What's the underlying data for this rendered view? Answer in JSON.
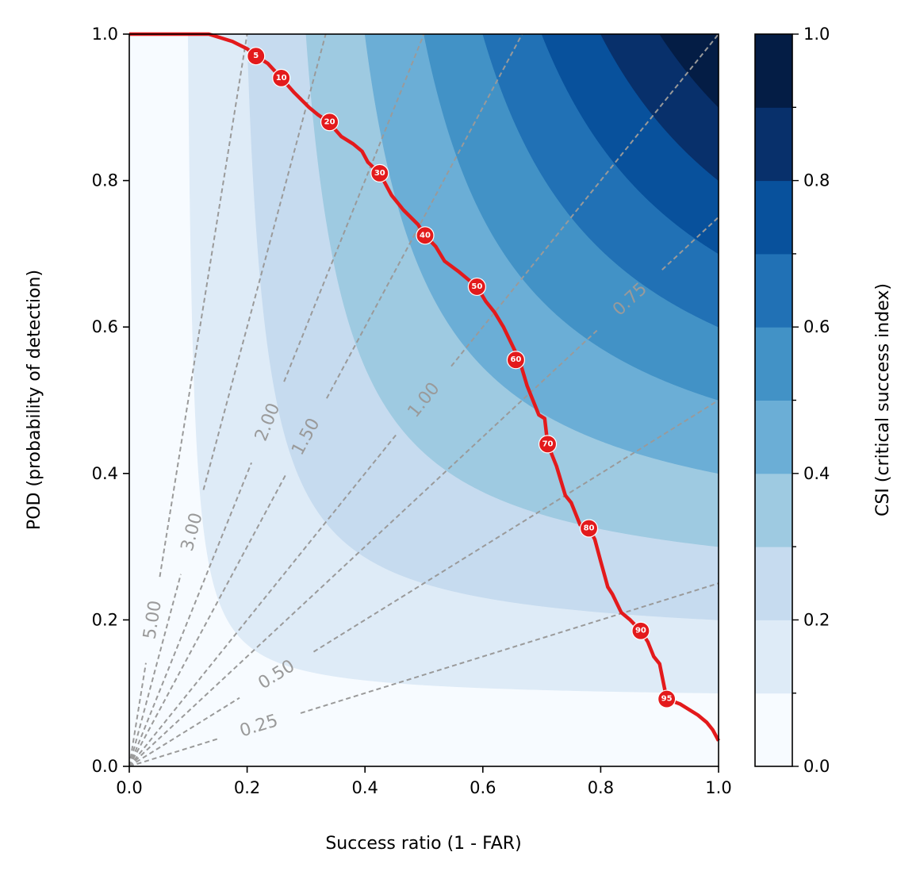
{
  "chart_data": {
    "type": "performance-diagram",
    "xlabel": "Success ratio (1 - FAR)",
    "ylabel": "POD (probability of detection)",
    "colorbar_label": "CSI (critical success index)",
    "xlim": [
      0,
      1
    ],
    "ylim": [
      0,
      1
    ],
    "x_ticks": [
      "0.0",
      "0.2",
      "0.4",
      "0.6",
      "0.8",
      "1.0"
    ],
    "y_ticks": [
      "0.0",
      "0.2",
      "0.4",
      "0.6",
      "0.8",
      "1.0"
    ],
    "colorbar_ticks": [
      "0.0",
      "0.2",
      "0.4",
      "0.6",
      "0.8",
      "1.0"
    ],
    "csi_levels": [
      0,
      0.1,
      0.2,
      0.3,
      0.4,
      0.5,
      0.6,
      0.7,
      0.8,
      0.9,
      1.0
    ],
    "csi_colors": [
      "#f7fbff",
      "#deebf7",
      "#c6dbef",
      "#9ecae1",
      "#6baed6",
      "#4292c6",
      "#2171b5",
      "#08519c",
      "#08306b",
      "#041d45"
    ],
    "bias_lines": [
      {
        "bias": 0.25,
        "label": "0.25"
      },
      {
        "bias": 0.5,
        "label": "0.50"
      },
      {
        "bias": 0.75,
        "label": "0.75"
      },
      {
        "bias": 1.0,
        "label": "1.00"
      },
      {
        "bias": 1.5,
        "label": "1.50"
      },
      {
        "bias": 2.0,
        "label": "2.00"
      },
      {
        "bias": 3.0,
        "label": "3.00"
      },
      {
        "bias": 5.0,
        "label": "5.00"
      }
    ],
    "curve": {
      "color": "#e31a1c",
      "x": [
        0.0,
        0.135,
        0.175,
        0.2,
        0.215,
        0.235,
        0.258,
        0.28,
        0.305,
        0.32,
        0.338,
        0.36,
        0.38,
        0.395,
        0.405,
        0.425,
        0.445,
        0.465,
        0.49,
        0.502,
        0.52,
        0.535,
        0.56,
        0.59,
        0.605,
        0.62,
        0.635,
        0.65,
        0.662,
        0.675,
        0.695,
        0.705,
        0.71,
        0.725,
        0.74,
        0.75,
        0.765,
        0.78,
        0.79,
        0.8,
        0.812,
        0.82,
        0.835,
        0.85,
        0.868,
        0.88,
        0.89,
        0.9,
        0.912,
        0.935,
        0.965,
        0.98,
        0.99,
        1.0
      ],
      "y": [
        1.0,
        1.0,
        0.99,
        0.98,
        0.97,
        0.96,
        0.94,
        0.92,
        0.9,
        0.89,
        0.88,
        0.86,
        0.85,
        0.84,
        0.825,
        0.81,
        0.78,
        0.76,
        0.74,
        0.725,
        0.71,
        0.69,
        0.675,
        0.655,
        0.635,
        0.62,
        0.6,
        0.575,
        0.555,
        0.52,
        0.48,
        0.475,
        0.44,
        0.41,
        0.37,
        0.36,
        0.33,
        0.325,
        0.31,
        0.28,
        0.245,
        0.235,
        0.21,
        0.2,
        0.185,
        0.17,
        0.15,
        0.14,
        0.092,
        0.085,
        0.07,
        0.06,
        0.05,
        0.035
      ]
    },
    "markers": [
      {
        "label": "5",
        "x": 0.215,
        "y": 0.97
      },
      {
        "label": "10",
        "x": 0.258,
        "y": 0.94
      },
      {
        "label": "20",
        "x": 0.34,
        "y": 0.88
      },
      {
        "label": "30",
        "x": 0.425,
        "y": 0.81
      },
      {
        "label": "40",
        "x": 0.502,
        "y": 0.725
      },
      {
        "label": "50",
        "x": 0.59,
        "y": 0.655
      },
      {
        "label": "60",
        "x": 0.656,
        "y": 0.555
      },
      {
        "label": "70",
        "x": 0.71,
        "y": 0.44
      },
      {
        "label": "80",
        "x": 0.78,
        "y": 0.325
      },
      {
        "label": "90",
        "x": 0.868,
        "y": 0.185
      },
      {
        "label": "95",
        "x": 0.912,
        "y": 0.092
      }
    ]
  }
}
